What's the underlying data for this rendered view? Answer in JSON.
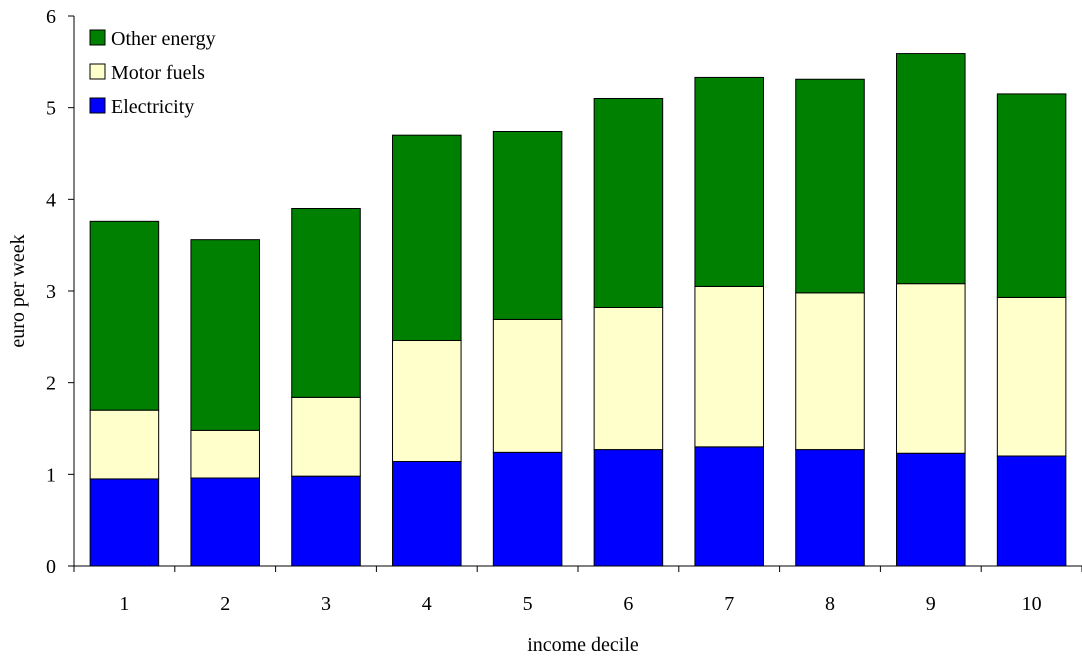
{
  "chart_data": {
    "type": "bar",
    "stacked": true,
    "title": "",
    "xlabel": "income decile",
    "ylabel": "euro per week",
    "ylim": [
      0,
      6
    ],
    "yticks": [
      0,
      1,
      2,
      3,
      4,
      5,
      6
    ],
    "grid": false,
    "legend_position": "top-left",
    "categories": [
      "1",
      "2",
      "3",
      "4",
      "5",
      "6",
      "7",
      "8",
      "9",
      "10"
    ],
    "series": [
      {
        "name": "Electricity",
        "color": "#0000FF",
        "values": [
          0.95,
          0.96,
          0.98,
          1.14,
          1.24,
          1.27,
          1.3,
          1.27,
          1.23,
          1.2
        ]
      },
      {
        "name": "Motor fuels",
        "color": "#FFFFCC",
        "values": [
          0.75,
          0.52,
          0.86,
          1.32,
          1.45,
          1.55,
          1.75,
          1.71,
          1.85,
          1.73
        ]
      },
      {
        "name": "Other energy",
        "color": "#008000",
        "values": [
          2.06,
          2.08,
          2.06,
          2.24,
          2.05,
          2.28,
          2.28,
          2.33,
          2.51,
          2.22
        ]
      }
    ],
    "legend_order": [
      "Other energy",
      "Motor fuels",
      "Electricity"
    ]
  }
}
